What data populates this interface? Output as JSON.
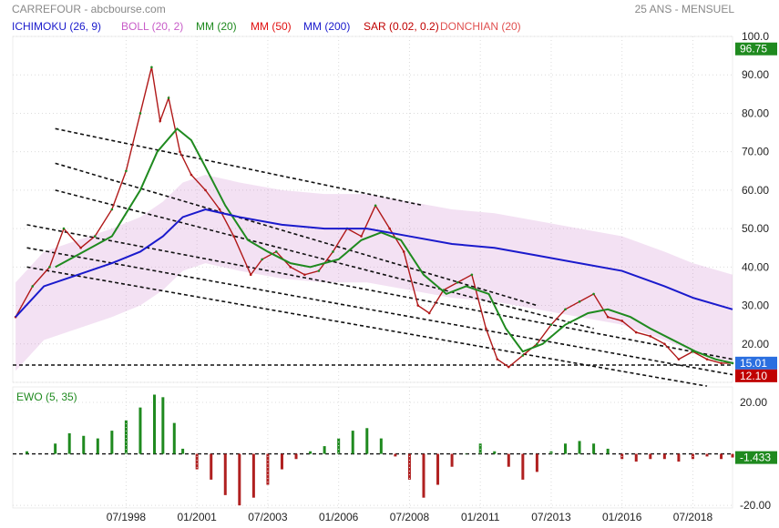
{
  "header": {
    "title": "CARREFOUR - abcbourse.com",
    "period": "25 ANS - MENSUEL"
  },
  "legend": [
    {
      "label": "ICHIMOKU (26, 9)",
      "color": "#1a1acc"
    },
    {
      "label": "BOLL (20, 2)",
      "color": "#c85cc8"
    },
    {
      "label": "MM (20)",
      "color": "#1f8a1f"
    },
    {
      "label": "MM (50)",
      "color": "#e01010"
    },
    {
      "label": "MM (200)",
      "color": "#1a1acc"
    },
    {
      "label": "SAR (0.02, 0.2)",
      "color": "#c00000"
    },
    {
      "label": "DONCHIAN (20)",
      "color": "#e05050"
    }
  ],
  "chart_data": [
    {
      "type": "line",
      "panel": "price",
      "y_ticks": [
        10,
        20,
        30,
        40,
        50,
        60,
        70,
        80,
        90,
        100
      ],
      "y_tick_labels": [
        "",
        "20.00",
        "30.00",
        "40.00",
        "50.00",
        "60.00",
        "70.00",
        "80.00",
        "90.00",
        "100.0"
      ],
      "ylim": [
        10,
        100
      ],
      "x_ticks": [
        "07/1998",
        "01/2001",
        "07/2003",
        "01/2006",
        "07/2008",
        "01/2011",
        "07/2013",
        "01/2016",
        "07/2018"
      ],
      "x_tick_years": [
        1998.5,
        2001.0,
        2003.5,
        2006.0,
        2008.5,
        2011.0,
        2013.5,
        2016.0,
        2018.5
      ],
      "xlim": [
        1994.5,
        2019.9
      ],
      "price": {
        "x": [
          1994.6,
          1995.2,
          1995.8,
          1996.3,
          1996.9,
          1997.4,
          1998.0,
          1998.5,
          1999.0,
          1999.4,
          1999.7,
          2000.0,
          2000.4,
          2000.8,
          2001.3,
          2001.8,
          2002.3,
          2002.9,
          2003.3,
          2003.8,
          2004.3,
          2004.8,
          2005.3,
          2005.8,
          2006.3,
          2006.8,
          2007.3,
          2007.8,
          2008.3,
          2008.8,
          2009.2,
          2009.7,
          2010.2,
          2010.7,
          2011.2,
          2011.6,
          2012.0,
          2012.5,
          2013.0,
          2013.5,
          2014.0,
          2014.5,
          2015.0,
          2015.5,
          2016.0,
          2016.5,
          2017.0,
          2017.5,
          2018.0,
          2018.5,
          2019.0,
          2019.5,
          2019.9
        ],
        "y": [
          27,
          35,
          40,
          50,
          45,
          48,
          55,
          65,
          80,
          92,
          78,
          84,
          70,
          64,
          60,
          55,
          48,
          38,
          42,
          44,
          40,
          38,
          39,
          44,
          50,
          48,
          56,
          50,
          44,
          30,
          28,
          34,
          36,
          38,
          24,
          16,
          14,
          17,
          20,
          25,
          29,
          31,
          33,
          27,
          26,
          23,
          22,
          20,
          16,
          18,
          16,
          15,
          15
        ]
      },
      "series": [
        {
          "name": "MM (20)",
          "color": "#1f8a1f",
          "x": [
            1996.0,
            1997.0,
            1998.0,
            1999.0,
            1999.6,
            2000.3,
            2000.8,
            2001.3,
            2002.0,
            2002.8,
            2003.5,
            2004.3,
            2005.0,
            2006.0,
            2006.8,
            2007.5,
            2008.2,
            2009.0,
            2009.8,
            2010.5,
            2011.3,
            2011.9,
            2012.5,
            2013.2,
            2014.0,
            2014.8,
            2015.5,
            2016.3,
            2017.0,
            2017.8,
            2018.6,
            2019.3,
            2019.9
          ],
          "y": [
            40,
            44,
            48,
            60,
            70,
            76,
            73,
            66,
            56,
            47,
            44,
            41,
            40,
            42,
            47,
            49,
            47,
            38,
            33,
            35,
            33,
            24,
            18,
            20,
            25,
            28,
            29,
            27,
            24,
            21,
            18,
            16,
            15
          ]
        },
        {
          "name": "MM (200)",
          "color": "#1a1acc",
          "x": [
            1994.6,
            1995.6,
            1996.8,
            1998.0,
            1999.0,
            1999.8,
            2000.5,
            2001.3,
            2002.5,
            2004.0,
            2005.5,
            2007.0,
            2008.5,
            2010.0,
            2011.5,
            2013.0,
            2014.5,
            2016.0,
            2017.5,
            2018.5,
            2019.9
          ],
          "y": [
            27,
            35,
            38,
            41,
            44,
            48,
            53,
            55,
            53,
            51,
            50,
            50,
            48,
            46,
            45,
            43,
            41,
            39,
            35,
            32,
            29
          ]
        }
      ],
      "last_price": 15.01,
      "last_price_color": "#2b6fe0",
      "price_tag": 96.75,
      "price_tag_color": "#1f8a1f",
      "sar_tag": 12.1,
      "sar_tag_color": "#c00000",
      "support_level": 14.5,
      "trend_lines": [
        {
          "x": [
            1996.0,
            2009.0
          ],
          "y": [
            76,
            56
          ]
        },
        {
          "x": [
            1996.0,
            2013.0
          ],
          "y": [
            67,
            30
          ]
        },
        {
          "x": [
            1996.0,
            2015.0
          ],
          "y": [
            60,
            24
          ]
        },
        {
          "x": [
            1995.0,
            2019.9
          ],
          "y": [
            51,
            16
          ]
        },
        {
          "x": [
            1995.0,
            2019.9
          ],
          "y": [
            45,
            12
          ]
        },
        {
          "x": [
            1995.0,
            2019.0
          ],
          "y": [
            40,
            9
          ]
        }
      ]
    },
    {
      "type": "bar",
      "panel": "oscillator",
      "title": "EWO (5, 35)",
      "title_color": "#1f8a1f",
      "y_ticks": [
        20,
        -20
      ],
      "y_tick_labels": [
        "20.00",
        "-20.00"
      ],
      "ylim": [
        -21,
        26
      ],
      "last_value": -1.433,
      "last_value_color": "#1f8a1f",
      "positive_color": "#1f8a1f",
      "negative_color": "#b02020",
      "x": [
        1995.0,
        1996.0,
        1996.5,
        1997.0,
        1997.5,
        1998.0,
        1998.5,
        1999.0,
        1999.5,
        1999.8,
        2000.2,
        2000.5,
        2001.0,
        2001.5,
        2002.0,
        2002.5,
        2003.0,
        2003.5,
        2004.0,
        2004.5,
        2005.0,
        2005.5,
        2006.0,
        2006.5,
        2007.0,
        2007.5,
        2008.0,
        2008.5,
        2009.0,
        2009.5,
        2010.0,
        2010.5,
        2011.0,
        2011.5,
        2012.0,
        2012.5,
        2013.0,
        2013.5,
        2014.0,
        2014.5,
        2015.0,
        2015.5,
        2016.0,
        2016.5,
        2017.0,
        2017.5,
        2018.0,
        2018.5,
        2019.0,
        2019.5,
        2019.9
      ],
      "values": [
        1,
        4,
        8,
        7,
        6,
        9,
        13,
        18,
        23,
        22,
        12,
        2,
        -6,
        -10,
        -16,
        -20,
        -17,
        -12,
        -6,
        -2,
        1,
        3,
        6,
        9,
        10,
        6,
        -1,
        -10,
        -17,
        -12,
        -5,
        0,
        4,
        1,
        -5,
        -10,
        -7,
        1,
        4,
        5,
        4,
        2,
        -2,
        -3,
        -2,
        -2,
        -3,
        -2,
        -1,
        -2,
        -1.4
      ]
    }
  ]
}
